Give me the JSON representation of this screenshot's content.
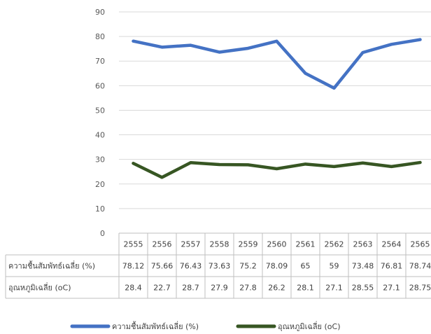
{
  "chart_data": {
    "type": "line",
    "title": "",
    "xlabel": "",
    "ylabel": "",
    "ylim": [
      0,
      90
    ],
    "yticks": [
      0,
      10,
      20,
      30,
      40,
      50,
      60,
      70,
      80,
      90
    ],
    "grid": true,
    "legend": "bottom",
    "categories": [
      "2555",
      "2556",
      "2557",
      "2558",
      "2559",
      "2560",
      "2561",
      "2562",
      "2563",
      "2564",
      "2565"
    ],
    "series": [
      {
        "name": "ความชื้นสัมพัทธ์เฉลี่ย (%)",
        "color": "#4472C4",
        "values": [
          78.12,
          75.66,
          76.43,
          73.63,
          75.2,
          78.09,
          65,
          59,
          73.48,
          76.81,
          78.74
        ],
        "labels": [
          "78.12",
          "75.66",
          "76.43",
          "73.63",
          "75.2",
          "78.09",
          "65",
          "59",
          "73.48",
          "76.81",
          "78.74"
        ]
      },
      {
        "name": "อุณหภูมิเฉลี่ย (oC)",
        "color": "#375623",
        "values": [
          28.4,
          22.7,
          28.7,
          27.9,
          27.8,
          26.2,
          28.1,
          27.1,
          28.55,
          27.1,
          28.75
        ],
        "labels": [
          "28.4",
          "22.7",
          "28.7",
          "27.9",
          "27.8",
          "26.2",
          "28.1",
          "27.1",
          "28.55",
          "27.1",
          "28.75"
        ]
      }
    ]
  }
}
